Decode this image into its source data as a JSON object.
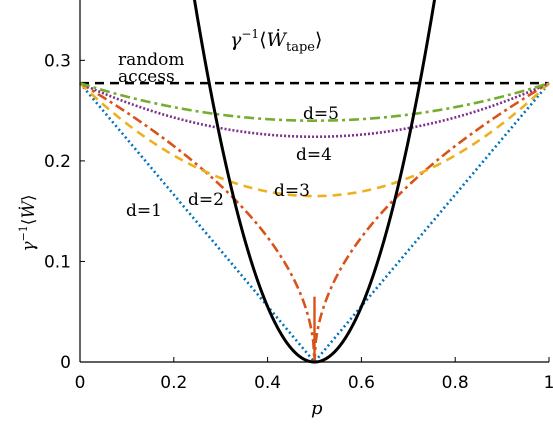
{
  "chart_data": {
    "type": "line",
    "xlabel": "p",
    "ylabel_parts": {
      "base": "γ",
      "sup": "−1",
      "lang": "⟨",
      "var": "Ẇ",
      "rang": "⟩"
    },
    "xlim": [
      0,
      1
    ],
    "ylim": [
      0,
      0.36
    ],
    "xticks": [
      "0",
      "0.2",
      "0.4",
      "0.6",
      "0.8",
      "1"
    ],
    "yticks": [
      "0",
      "0.1",
      "0.2",
      "0.3"
    ],
    "random_access_level": 0.2773,
    "grid": false,
    "series": [
      {
        "label": "d=1",
        "color": "#0072BD",
        "dash": "dotted",
        "kind": "v",
        "center": 0.2773
      },
      {
        "label": "d=2",
        "color": "#D95319",
        "dash": "dashdot",
        "kind": "cusp",
        "center": 0.0
      },
      {
        "label": "d=3",
        "color": "#EDB120",
        "dash": "dashed",
        "kind": "bowl",
        "center": 0.165
      },
      {
        "label": "d=4",
        "color": "#7E2F8E",
        "dash": "dotted-dense",
        "kind": "bowl",
        "center": 0.224
      },
      {
        "label": "d=5",
        "color": "#77AC30",
        "dash": "dashdot",
        "kind": "bowl",
        "center": 0.24
      },
      {
        "label": "γ⁻¹⟨Ẇtape⟩",
        "color": "#000000",
        "dash": "solid",
        "kind": "parabola",
        "coef": 5.5
      }
    ],
    "annotations": {
      "random": "random",
      "access": "access",
      "d1": "d=1",
      "d2": "d=2",
      "d3": "d=3",
      "d4": "d=4",
      "d5": "d=5",
      "tape_base": "γ",
      "tape_sup": "−1",
      "tape_lang": "⟨",
      "tape_var": "Ẇ",
      "tape_sub": "tape",
      "tape_rang": "⟩"
    }
  }
}
